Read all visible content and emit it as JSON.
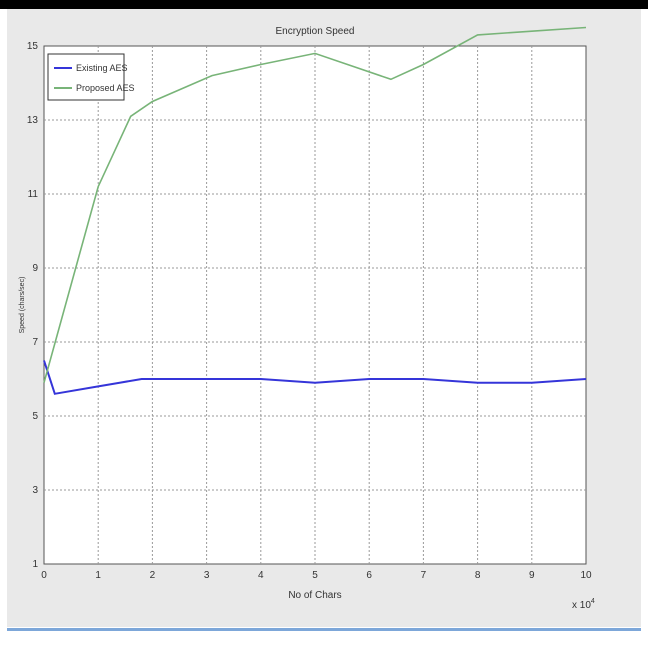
{
  "chart_data": {
    "type": "line",
    "title": "Encryption Speed",
    "xlabel": "No of Chars",
    "ylabel": "Speed (chars/sec)",
    "x_multiplier_label": "x 10",
    "x_multiplier_exponent": "4",
    "xlim": [
      0,
      10
    ],
    "ylim": [
      1,
      15
    ],
    "xticks": [
      0,
      1,
      2,
      3,
      4,
      5,
      6,
      7,
      8,
      9,
      10
    ],
    "yticks": [
      1,
      3,
      5,
      7,
      9,
      11,
      13,
      15
    ],
    "grid": true,
    "legend_position": "top-left",
    "series": [
      {
        "name": "Existing AES",
        "color": "#3535d9",
        "x": [
          0,
          0.2,
          1,
          1.8,
          3.1,
          4,
          5,
          6,
          7,
          8,
          9,
          10
        ],
        "y": [
          6.5,
          5.6,
          5.8,
          6.0,
          6.0,
          6.0,
          5.9,
          6.0,
          6.0,
          5.9,
          5.9,
          6.0
        ]
      },
      {
        "name": "Proposed AES",
        "color": "#78b478",
        "x": [
          0,
          1,
          1.6,
          2,
          3.1,
          4,
          5,
          6.4,
          7,
          8,
          9,
          10
        ],
        "y": [
          5.9,
          11.2,
          13.1,
          13.5,
          14.2,
          14.5,
          14.8,
          14.1,
          14.5,
          15.3,
          15.4,
          15.5
        ]
      }
    ]
  }
}
